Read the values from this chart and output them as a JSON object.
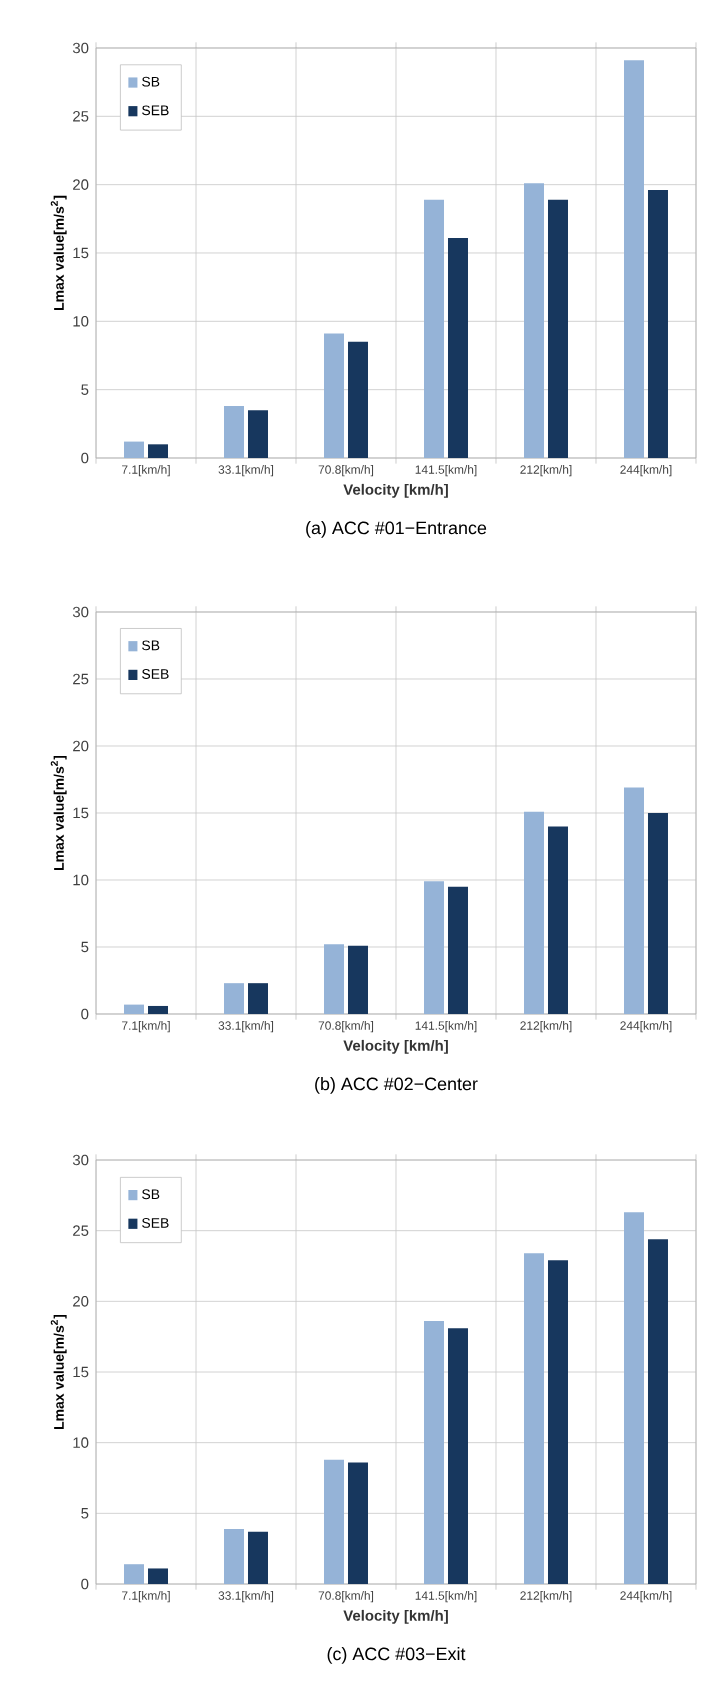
{
  "chart_data": [
    {
      "type": "bar",
      "title": "(a)  ACC #01−Entrance",
      "xlabel": "Velocity [km/h]",
      "ylabel": "Lmax value[m/s$^{2}$]",
      "categories": [
        "7.1[km/h]",
        "33.1[km/h]",
        "70.8[km/h]",
        "141.5[km/h]",
        "212[km/h]",
        "244[km/h]"
      ],
      "series": [
        {
          "name": "SB",
          "color": "#95b3d7",
          "values": [
            1.2,
            3.8,
            9.1,
            18.9,
            20.1,
            29.1
          ]
        },
        {
          "name": "SEB",
          "color": "#17375e",
          "values": [
            1.0,
            3.5,
            8.5,
            16.1,
            18.9,
            19.6
          ]
        }
      ],
      "ylim": [
        0,
        30
      ],
      "yticks": [
        0,
        5,
        10,
        15,
        20,
        25,
        30
      ],
      "grid": true,
      "legend": "top left"
    },
    {
      "type": "bar",
      "title": "(b)  ACC #02−Center",
      "xlabel": "Velocity [km/h]",
      "ylabel": "Lmax value[m/s$^{2}$]",
      "categories": [
        "7.1[km/h]",
        "33.1[km/h]",
        "70.8[km/h]",
        "141.5[km/h]",
        "212[km/h]",
        "244[km/h]"
      ],
      "series": [
        {
          "name": "SB",
          "color": "#95b3d7",
          "values": [
            0.7,
            2.3,
            5.2,
            9.9,
            15.1,
            16.9
          ]
        },
        {
          "name": "SEB",
          "color": "#17375e",
          "values": [
            0.6,
            2.3,
            5.1,
            9.5,
            14.0,
            15.0
          ]
        }
      ],
      "ylim": [
        0,
        30
      ],
      "yticks": [
        0,
        5,
        10,
        15,
        20,
        25,
        30
      ],
      "grid": true,
      "legend": "top left"
    },
    {
      "type": "bar",
      "title": "(c)  ACC #03−Exit",
      "xlabel": "Velocity [km/h]",
      "ylabel": "Lmax value[m/s$^{2}$]",
      "categories": [
        "7.1[km/h]",
        "33.1[km/h]",
        "70.8[km/h]",
        "141.5[km/h]",
        "212[km/h]",
        "244[km/h]"
      ],
      "series": [
        {
          "name": "SB",
          "color": "#95b3d7",
          "values": [
            1.4,
            3.9,
            8.8,
            18.6,
            23.4,
            26.3
          ]
        },
        {
          "name": "SEB",
          "color": "#17375e",
          "values": [
            1.1,
            3.7,
            8.6,
            18.1,
            22.9,
            24.4
          ]
        }
      ],
      "ylim": [
        0,
        30
      ],
      "yticks": [
        0,
        5,
        10,
        15,
        20,
        25,
        30
      ],
      "grid": true,
      "legend": "top left"
    }
  ]
}
